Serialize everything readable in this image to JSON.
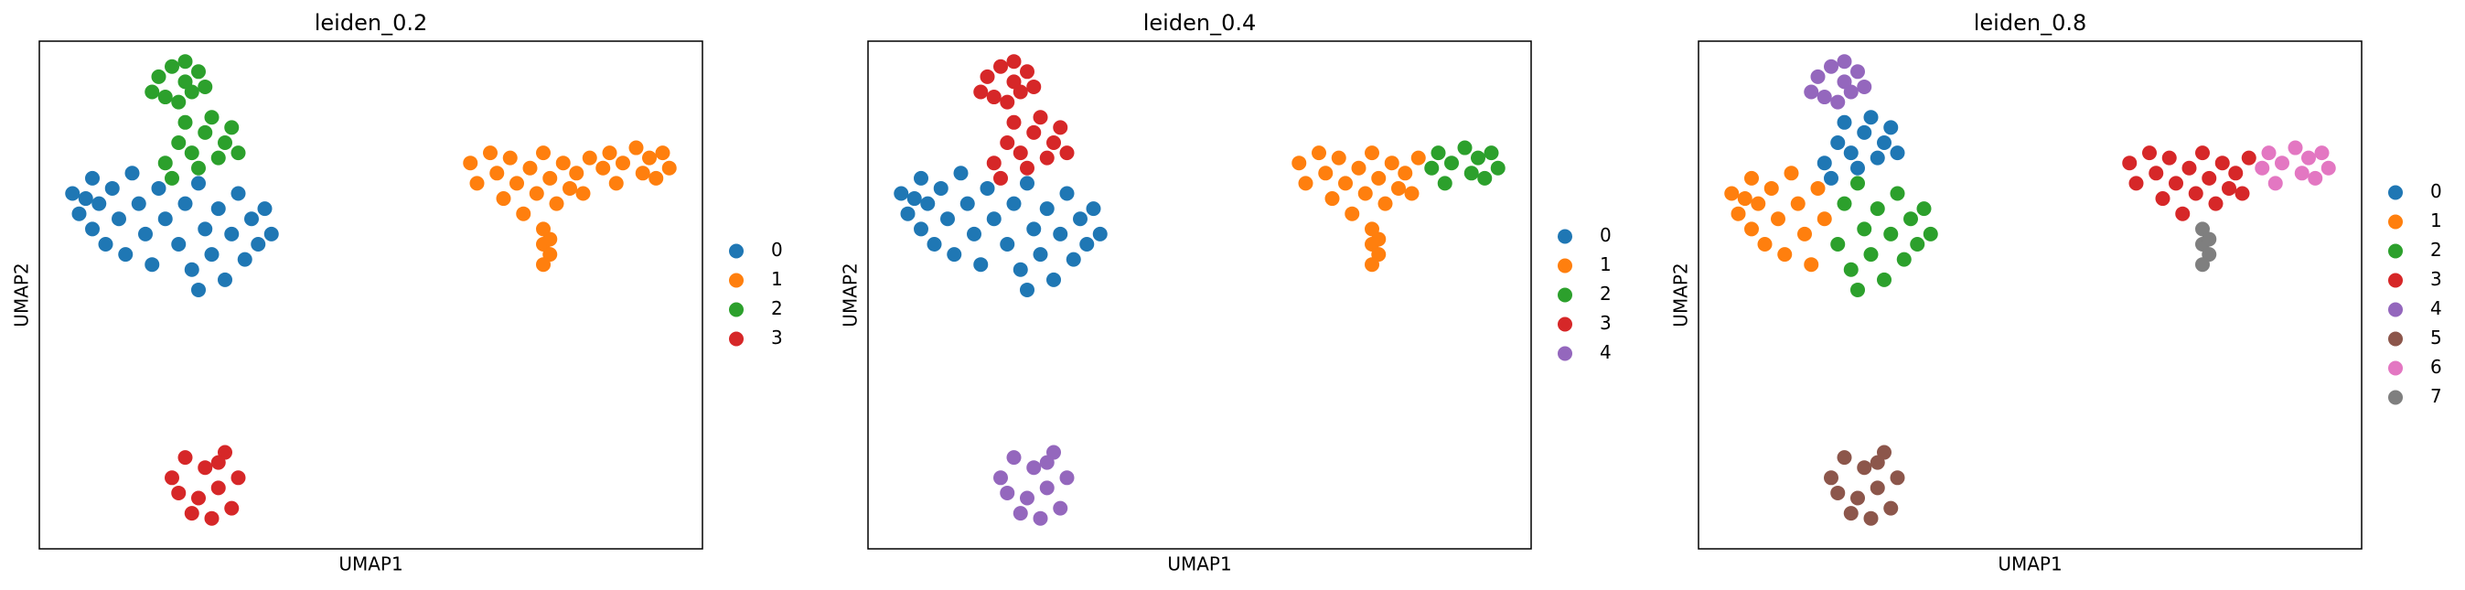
{
  "chart_data": [
    {
      "type": "scatter",
      "title": "leiden_0.2",
      "x_label": "UMAP1",
      "y_label": "UMAP2",
      "legend": "right",
      "xlim": [
        0,
        100
      ],
      "ylim": [
        0,
        100
      ],
      "series": [
        {
          "name": "0",
          "color": "#1f77b4",
          "x": [
            5,
            6,
            8,
            8,
            9,
            10,
            11,
            12,
            13,
            14,
            15,
            16,
            17,
            18,
            19,
            7,
            21,
            22,
            23,
            24,
            25,
            26,
            27,
            28,
            29,
            30,
            31,
            32,
            33,
            34,
            35,
            24
          ],
          "y": [
            70,
            66,
            73,
            63,
            68,
            60,
            71,
            65,
            58,
            74,
            68,
            62,
            56,
            71,
            65,
            69,
            60,
            68,
            55,
            72,
            63,
            58,
            67,
            53,
            62,
            70,
            57,
            65,
            60,
            67,
            62,
            51
          ]
        },
        {
          "name": "1",
          "color": "#ff7f0e",
          "x": [
            65,
            66,
            68,
            69,
            70,
            71,
            72,
            73,
            74,
            75,
            76,
            77,
            78,
            79,
            80,
            81,
            82,
            83,
            85,
            86,
            87,
            88,
            90,
            91,
            92,
            93,
            94,
            95,
            76,
            76,
            77,
            76,
            77
          ],
          "y": [
            76,
            72,
            78,
            74,
            69,
            77,
            72,
            66,
            75,
            70,
            78,
            73,
            68,
            76,
            71,
            74,
            70,
            77,
            75,
            78,
            72,
            76,
            79,
            74,
            77,
            73,
            78,
            75,
            63,
            60,
            58,
            56,
            61
          ]
        },
        {
          "name": "2",
          "color": "#2ca02c",
          "x": [
            19,
            21,
            23,
            25,
            27,
            28,
            30,
            22,
            26,
            20,
            24,
            29,
            18,
            20,
            22,
            24,
            19,
            21,
            23,
            25,
            17,
            22
          ],
          "y": [
            76,
            80,
            78,
            82,
            77,
            80,
            78,
            84,
            85,
            73,
            75,
            83,
            93,
            95,
            92,
            94,
            89,
            88,
            90,
            91,
            90,
            96
          ]
        },
        {
          "name": "3",
          "color": "#d62728",
          "x": [
            20,
            22,
            24,
            25,
            27,
            28,
            29,
            23,
            30,
            26,
            21,
            27
          ],
          "y": [
            14,
            18,
            10,
            16,
            12,
            19,
            8,
            7,
            14,
            6,
            11,
            17
          ]
        }
      ]
    },
    {
      "type": "scatter",
      "title": "leiden_0.4",
      "x_label": "UMAP1",
      "y_label": "UMAP2",
      "legend": "right",
      "xlim": [
        0,
        100
      ],
      "ylim": [
        0,
        100
      ],
      "series": [
        {
          "name": "0",
          "color": "#1f77b4",
          "x": [
            5,
            6,
            8,
            8,
            9,
            10,
            11,
            12,
            13,
            14,
            15,
            16,
            17,
            18,
            19,
            7,
            21,
            22,
            23,
            24,
            25,
            26,
            27,
            28,
            29,
            30,
            31,
            32,
            33,
            34,
            35,
            24
          ],
          "y": [
            70,
            66,
            73,
            63,
            68,
            60,
            71,
            65,
            58,
            74,
            68,
            62,
            56,
            71,
            65,
            69,
            60,
            68,
            55,
            72,
            63,
            58,
            67,
            53,
            62,
            70,
            57,
            65,
            60,
            67,
            62,
            51
          ]
        },
        {
          "name": "1",
          "color": "#ff7f0e",
          "x": [
            65,
            66,
            68,
            69,
            70,
            71,
            72,
            73,
            74,
            75,
            76,
            77,
            78,
            79,
            80,
            81,
            82,
            83,
            76,
            76,
            77,
            76,
            77
          ],
          "y": [
            76,
            72,
            78,
            74,
            69,
            77,
            72,
            66,
            75,
            70,
            78,
            73,
            68,
            76,
            71,
            74,
            70,
            77,
            63,
            60,
            58,
            56,
            61
          ]
        },
        {
          "name": "2",
          "color": "#2ca02c",
          "x": [
            85,
            86,
            87,
            88,
            90,
            91,
            92,
            93,
            94,
            95
          ],
          "y": [
            75,
            78,
            72,
            76,
            79,
            74,
            77,
            73,
            78,
            75
          ]
        },
        {
          "name": "3",
          "color": "#d62728",
          "x": [
            19,
            21,
            23,
            25,
            27,
            28,
            30,
            22,
            26,
            20,
            24,
            29,
            18,
            20,
            22,
            24,
            19,
            21,
            23,
            25,
            17,
            22
          ],
          "y": [
            76,
            80,
            78,
            82,
            77,
            80,
            78,
            84,
            85,
            73,
            75,
            83,
            93,
            95,
            92,
            94,
            89,
            88,
            90,
            91,
            90,
            96
          ]
        },
        {
          "name": "4",
          "color": "#9467bd",
          "x": [
            20,
            22,
            24,
            25,
            27,
            28,
            29,
            23,
            30,
            26,
            21,
            27
          ],
          "y": [
            14,
            18,
            10,
            16,
            12,
            19,
            8,
            7,
            14,
            6,
            11,
            17
          ]
        }
      ]
    },
    {
      "type": "scatter",
      "title": "leiden_0.8",
      "x_label": "UMAP1",
      "y_label": "UMAP2",
      "legend": "right",
      "xlim": [
        0,
        100
      ],
      "ylim": [
        0,
        100
      ],
      "series": [
        {
          "name": "0",
          "color": "#1f77b4",
          "x": [
            19,
            21,
            23,
            25,
            27,
            28,
            30,
            22,
            26,
            20,
            24,
            29
          ],
          "y": [
            76,
            80,
            78,
            82,
            77,
            80,
            78,
            84,
            85,
            73,
            75,
            83
          ]
        },
        {
          "name": "1",
          "color": "#ff7f0e",
          "x": [
            5,
            6,
            8,
            8,
            9,
            10,
            11,
            12,
            13,
            14,
            15,
            16,
            17,
            18,
            19,
            7
          ],
          "y": [
            70,
            66,
            73,
            63,
            68,
            60,
            71,
            65,
            58,
            74,
            68,
            62,
            56,
            71,
            65,
            69
          ]
        },
        {
          "name": "2",
          "color": "#2ca02c",
          "x": [
            21,
            22,
            23,
            24,
            25,
            26,
            27,
            28,
            29,
            30,
            31,
            32,
            33,
            34,
            35,
            24
          ],
          "y": [
            60,
            68,
            55,
            72,
            63,
            58,
            67,
            53,
            62,
            70,
            57,
            65,
            60,
            67,
            62,
            51
          ]
        },
        {
          "name": "3",
          "color": "#d62728",
          "x": [
            65,
            66,
            68,
            69,
            70,
            71,
            72,
            73,
            74,
            75,
            76,
            77,
            78,
            79,
            80,
            81,
            82,
            83
          ],
          "y": [
            76,
            72,
            78,
            74,
            69,
            77,
            72,
            66,
            75,
            70,
            78,
            73,
            68,
            76,
            71,
            74,
            70,
            77
          ]
        },
        {
          "name": "4",
          "color": "#9467bd",
          "x": [
            18,
            20,
            22,
            24,
            19,
            21,
            23,
            25,
            17,
            22
          ],
          "y": [
            93,
            95,
            92,
            94,
            89,
            88,
            90,
            91,
            90,
            96
          ]
        },
        {
          "name": "5",
          "color": "#8c564b",
          "x": [
            20,
            22,
            24,
            25,
            27,
            28,
            29,
            23,
            30,
            26,
            21,
            27
          ],
          "y": [
            14,
            18,
            10,
            16,
            12,
            19,
            8,
            7,
            14,
            6,
            11,
            17
          ]
        },
        {
          "name": "6",
          "color": "#e377c2",
          "x": [
            85,
            86,
            87,
            88,
            90,
            91,
            92,
            93,
            94,
            95
          ],
          "y": [
            75,
            78,
            72,
            76,
            79,
            74,
            77,
            73,
            78,
            75
          ]
        },
        {
          "name": "7",
          "color": "#7f7f7f",
          "x": [
            76,
            76,
            77,
            76,
            77
          ],
          "y": [
            63,
            60,
            58,
            56,
            61
          ]
        }
      ]
    }
  ]
}
